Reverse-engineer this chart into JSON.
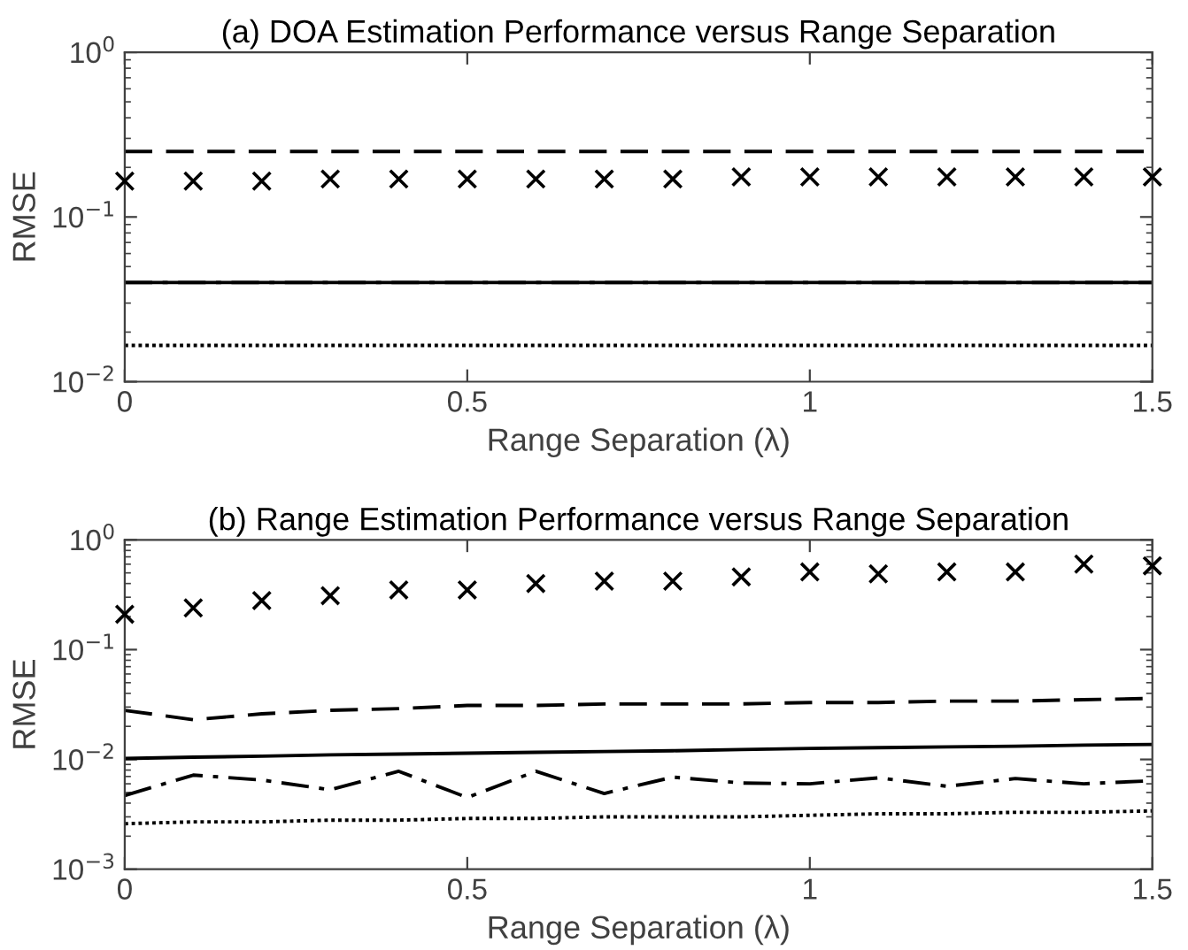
{
  "chart_data": [
    {
      "type": "line",
      "title": "(a) DOA Estimation Performance versus Range Separation",
      "xlabel": "Range Separation (λ)",
      "ylabel": "RMSE",
      "log": "y",
      "grid": false,
      "legend": false,
      "x": [
        0,
        0.1,
        0.2,
        0.3,
        0.4,
        0.5,
        0.6,
        0.7,
        0.8,
        0.9,
        1,
        1.1,
        1.2,
        1.3,
        1.4,
        1.5
      ],
      "xlim": [
        0,
        1.5
      ],
      "xticks": [
        0,
        0.5,
        1,
        1.5
      ],
      "ylim": [
        0.01,
        1
      ],
      "yticks": [
        {
          "value": 0.01,
          "label": "10$^{−2}$"
        },
        {
          "value": 0.1,
          "label": "10$^{−1}$"
        },
        {
          "value": 1,
          "label": "10$^{0}$"
        }
      ],
      "series": [
        {
          "type": "scatter",
          "marker": "cross",
          "color": "#000000",
          "values": [
            0.165,
            0.165,
            0.165,
            0.17,
            0.17,
            0.17,
            0.17,
            0.17,
            0.17,
            0.175,
            0.175,
            0.175,
            0.175,
            0.175,
            0.175,
            0.175
          ]
        },
        {
          "type": "line",
          "line_style": "dashed",
          "color": "#000000",
          "values": [
            0.25,
            0.25,
            0.25,
            0.25,
            0.25,
            0.25,
            0.25,
            0.25,
            0.25,
            0.25,
            0.25,
            0.25,
            0.25,
            0.25,
            0.25,
            0.25
          ]
        },
        {
          "type": "line",
          "line_style": "solid",
          "color": "#000000",
          "values": [
            0.04,
            0.04,
            0.04,
            0.04,
            0.04,
            0.04,
            0.04,
            0.04,
            0.04,
            0.04,
            0.04,
            0.04,
            0.04,
            0.04,
            0.04,
            0.04
          ]
        },
        {
          "type": "line",
          "line_style": "dashdot",
          "color": "#000000",
          "values": [
            0.04,
            0.04,
            0.04,
            0.04,
            0.04,
            0.04,
            0.04,
            0.04,
            0.04,
            0.04,
            0.04,
            0.04,
            0.04,
            0.04,
            0.04,
            0.04
          ]
        },
        {
          "type": "line",
          "line_style": "dotted",
          "color": "#000000",
          "values": [
            0.0166,
            0.0166,
            0.0166,
            0.0166,
            0.0166,
            0.0166,
            0.0166,
            0.0166,
            0.0166,
            0.0166,
            0.0166,
            0.0166,
            0.0166,
            0.0166,
            0.0166,
            0.0166
          ]
        }
      ]
    },
    {
      "type": "line",
      "title": "(b) Range Estimation Performance versus Range Separation",
      "xlabel": "Range Separation (λ)",
      "ylabel": "RMSE",
      "log": "y",
      "grid": false,
      "legend": false,
      "x": [
        0,
        0.1,
        0.2,
        0.3,
        0.4,
        0.5,
        0.6,
        0.7,
        0.8,
        0.9,
        1,
        1.1,
        1.2,
        1.3,
        1.4,
        1.5
      ],
      "xlim": [
        0,
        1.5
      ],
      "xticks": [
        0,
        0.5,
        1,
        1.5
      ],
      "ylim": [
        0.001,
        1
      ],
      "yticks": [
        {
          "value": 0.001,
          "label": "10$^{−3}$"
        },
        {
          "value": 0.01,
          "label": "10$^{−2}$"
        },
        {
          "value": 0.1,
          "label": "10$^{−1}$"
        },
        {
          "value": 1,
          "label": "10$^{0}$"
        }
      ],
      "series": [
        {
          "type": "scatter",
          "marker": "cross",
          "color": "#000000",
          "values": [
            0.21,
            0.24,
            0.28,
            0.31,
            0.35,
            0.35,
            0.4,
            0.42,
            0.42,
            0.46,
            0.51,
            0.49,
            0.51,
            0.51,
            0.6,
            0.58
          ]
        },
        {
          "type": "line",
          "line_style": "dashed",
          "color": "#000000",
          "values": [
            0.028,
            0.023,
            0.026,
            0.028,
            0.029,
            0.031,
            0.031,
            0.032,
            0.032,
            0.032,
            0.033,
            0.033,
            0.034,
            0.034,
            0.035,
            0.036
          ]
        },
        {
          "type": "line",
          "line_style": "solid",
          "color": "#000000",
          "values": [
            0.0102,
            0.0105,
            0.0107,
            0.011,
            0.0112,
            0.0114,
            0.0116,
            0.0118,
            0.012,
            0.0123,
            0.0126,
            0.0128,
            0.013,
            0.0132,
            0.0135,
            0.0137
          ]
        },
        {
          "type": "line",
          "line_style": "dashdot",
          "color": "#000000",
          "values": [
            0.0047,
            0.0072,
            0.0065,
            0.0053,
            0.0078,
            0.0045,
            0.0078,
            0.0049,
            0.0069,
            0.0061,
            0.006,
            0.0068,
            0.0057,
            0.0067,
            0.006,
            0.0064
          ]
        },
        {
          "type": "line",
          "line_style": "dotted",
          "color": "#000000",
          "values": [
            0.0026,
            0.0027,
            0.0027,
            0.0028,
            0.0028,
            0.0029,
            0.0029,
            0.003,
            0.003,
            0.003,
            0.0031,
            0.0032,
            0.0032,
            0.0033,
            0.0033,
            0.0034
          ]
        }
      ]
    }
  ]
}
